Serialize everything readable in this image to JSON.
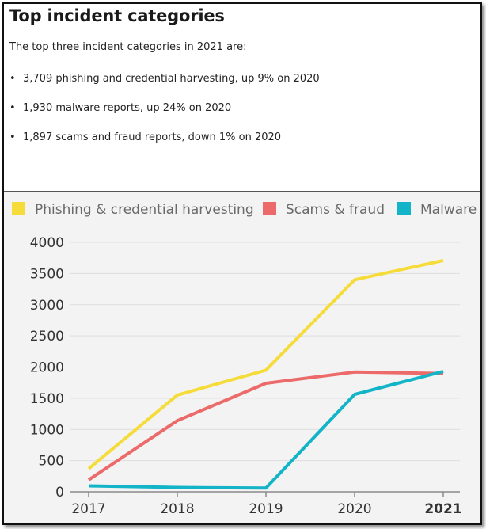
{
  "header": {
    "title": "Top incident categories",
    "intro": "The top three incident categories in 2021 are:"
  },
  "bullets": [
    {
      "marker": "•",
      "text": "3,709 phishing and credential harvesting, up 9% on 2020"
    },
    {
      "marker": "•",
      "text": "1,930 malware reports, up 24% on 2020"
    },
    {
      "marker": "•",
      "text": "1,897 scams and fraud reports, down 1% on 2020"
    }
  ],
  "chart_data": {
    "type": "line",
    "categories": [
      "2017",
      "2018",
      "2019",
      "2020",
      "2021"
    ],
    "highlight_category": "2021",
    "ylim": [
      0,
      4000
    ],
    "yticks": [
      0,
      500,
      1000,
      1500,
      2000,
      2500,
      3000,
      3500,
      4000
    ],
    "grid": true,
    "legend_position": "top",
    "series": [
      {
        "name": "Phishing & credential harvesting",
        "color": "#f5dc3a",
        "values": [
          370,
          1550,
          1950,
          3400,
          3709
        ]
      },
      {
        "name": "Scams & fraud",
        "color": "#ec6a6a",
        "values": [
          190,
          1140,
          1740,
          1920,
          1897
        ]
      },
      {
        "name": "Malware",
        "color": "#14b4c8",
        "values": [
          95,
          70,
          60,
          1560,
          1930
        ]
      }
    ]
  }
}
